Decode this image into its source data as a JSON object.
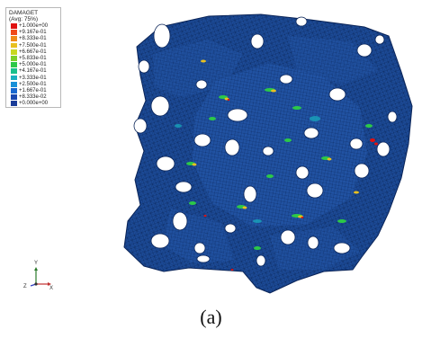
{
  "legend": {
    "title": "DAMAGET",
    "subtitle": "(Avg: 75%)",
    "entries": [
      {
        "value": "+1.000e+00",
        "color": "#e01010"
      },
      {
        "value": "+9.167e-01",
        "color": "#f04a1a"
      },
      {
        "value": "+8.333e-01",
        "color": "#f08a18"
      },
      {
        "value": "+7.500e-01",
        "color": "#e8c020"
      },
      {
        "value": "+6.667e-01",
        "color": "#c8d820"
      },
      {
        "value": "+5.833e-01",
        "color": "#7cd028"
      },
      {
        "value": "+5.000e-01",
        "color": "#2cc848"
      },
      {
        "value": "+4.167e-01",
        "color": "#18c08c"
      },
      {
        "value": "+3.333e-01",
        "color": "#18b0c0"
      },
      {
        "value": "+2.500e-01",
        "color": "#1890d8"
      },
      {
        "value": "+1.667e-01",
        "color": "#1868d0"
      },
      {
        "value": "+8.333e-02",
        "color": "#1848b0"
      },
      {
        "value": "+0.000e+00",
        "color": "#1a3c98"
      }
    ]
  },
  "triad": {
    "x_label": "X",
    "y_label": "Y",
    "z_label": "Z"
  },
  "caption": "(a)"
}
